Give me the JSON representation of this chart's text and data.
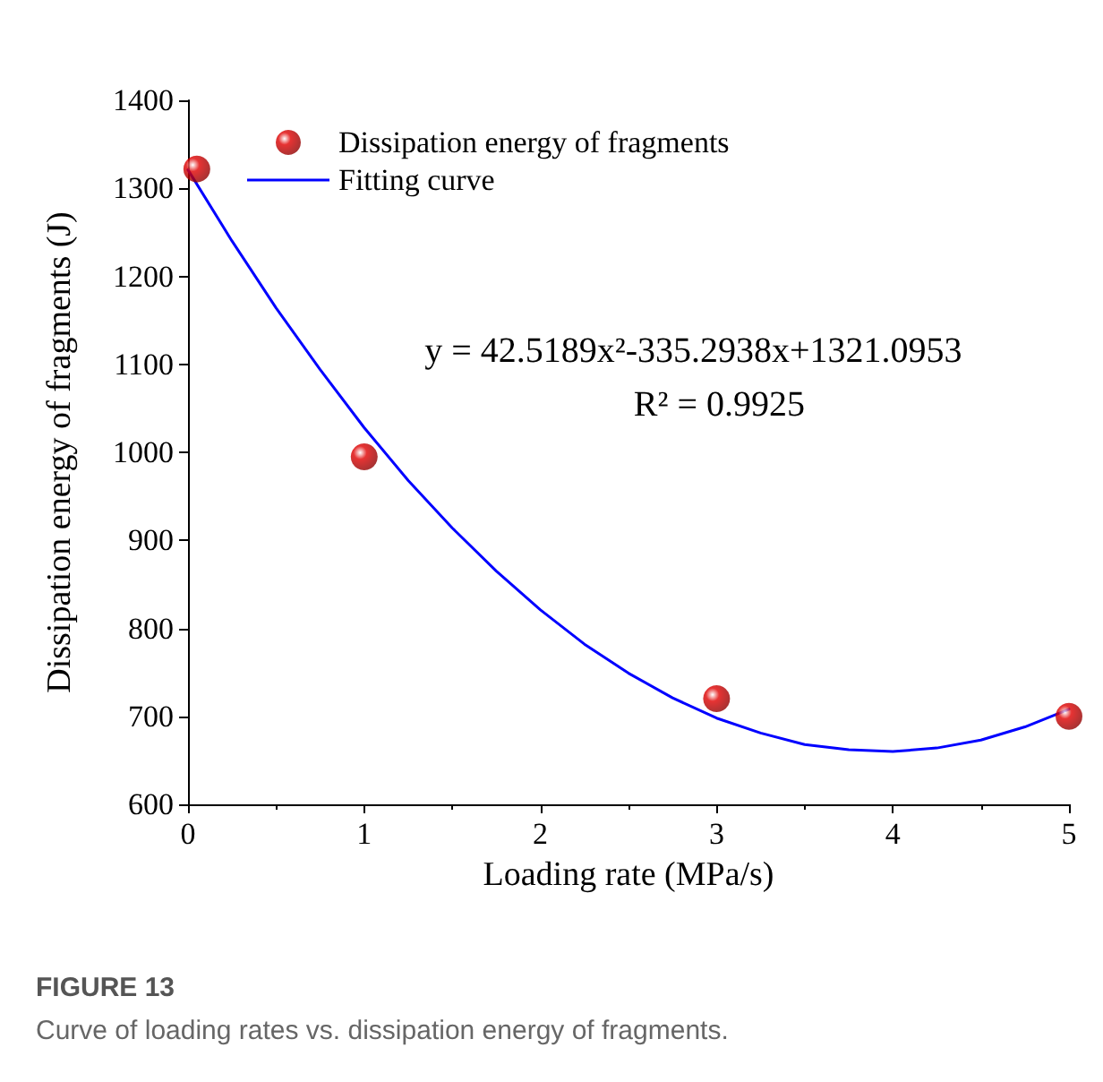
{
  "chart_data": {
    "type": "scatter",
    "xlabel": "Loading rate (MPa/s)",
    "ylabel": "Dissipation energy of fragments (J)",
    "xlim": [
      0,
      5
    ],
    "xticks": [
      0,
      1,
      2,
      3,
      4,
      5
    ],
    "ylim": [
      600,
      1400
    ],
    "yticks": [
      600,
      700,
      800,
      900,
      1000,
      1100,
      1200,
      1300,
      1400
    ],
    "series": [
      {
        "name": "Dissipation energy of fragments",
        "color": "#e00000",
        "marker": "circle",
        "x": [
          0.05,
          1,
          3,
          5
        ],
        "values": [
          1322,
          995,
          720,
          700
        ]
      },
      {
        "name": "Fitting curve",
        "type": "line",
        "color": "#0000ff",
        "marker": "none",
        "line_style": "solid",
        "x": [
          0,
          0.25,
          0.5,
          0.75,
          1,
          1.25,
          1.5,
          1.75,
          2,
          2.25,
          2.5,
          2.75,
          3,
          3.25,
          3.5,
          3.75,
          4,
          4.25,
          4.5,
          4.75,
          5
        ],
        "values": [
          1321,
          1240,
          1164,
          1094,
          1028,
          968,
          914,
          865,
          821,
          782,
          749,
          721,
          698,
          681,
          668,
          662,
          660,
          664,
          673,
          688,
          708
        ]
      }
    ],
    "annotations": [
      "y = 42.5189x²-335.2938x+1321.0953",
      "R² = 0.9925",
      "FIGURE 13",
      "Curve of loading rates vs. dissipation energy of fragments."
    ],
    "legend": "top left",
    "grid": false
  }
}
